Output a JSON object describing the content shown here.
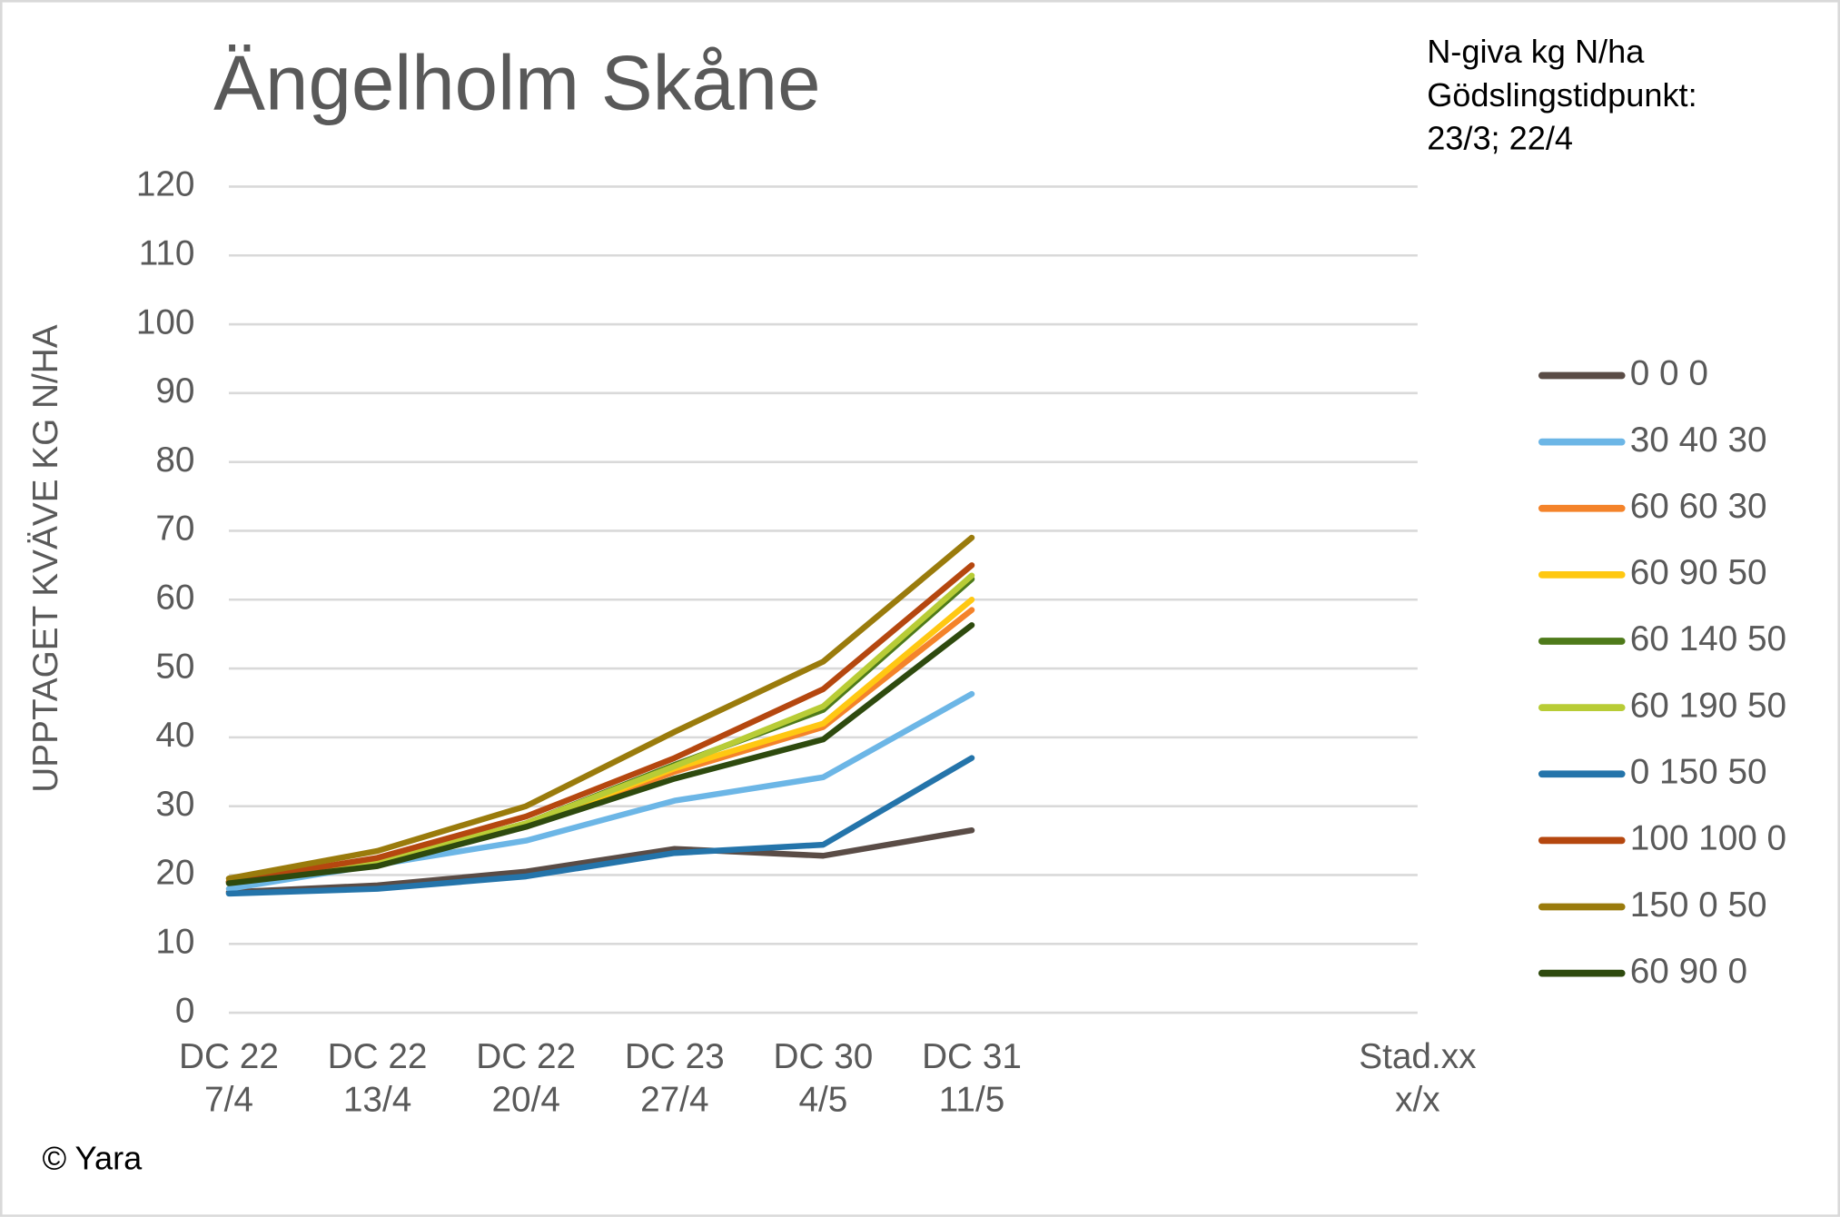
{
  "chart_data": {
    "type": "line",
    "title": "Ängelholm Skåne",
    "annotation": [
      "N-giva kg N/ha",
      "Gödslingstidpunkt:",
      "23/3; 22/4"
    ],
    "y_label": "UPPTAGET KVÄVE KG N/HA",
    "footer": "© Yara",
    "categories": [
      "DC 22\n7/4",
      "DC 22\n13/4",
      "DC 22\n20/4",
      "DC 23\n27/4",
      "DC 30\n4/5",
      "DC 31\n11/5",
      null,
      null,
      "Stad.xx\nx/x"
    ],
    "ylim": [
      0,
      120
    ],
    "yticks": [
      0,
      10,
      20,
      30,
      40,
      50,
      60,
      70,
      80,
      90,
      100,
      110,
      120
    ],
    "grid": true,
    "legend": "right",
    "series": [
      {
        "name": "0 0 0",
        "color": "#5a4c46",
        "values": [
          17.5,
          18.5,
          20.5,
          23.8,
          22.8,
          26.5,
          null,
          null,
          null
        ]
      },
      {
        "name": "30 40 30",
        "color": "#6cb6e6",
        "values": [
          18,
          21.5,
          25,
          30.8,
          34.2,
          46.3,
          null,
          null,
          null
        ]
      },
      {
        "name": "60 60 30",
        "color": "#f4832a",
        "values": [
          19,
          22,
          27,
          35,
          41.5,
          58.5,
          null,
          null,
          null
        ]
      },
      {
        "name": "60 90 50",
        "color": "#ffc812",
        "values": [
          19,
          22,
          27.2,
          35.5,
          42,
          60,
          null,
          null,
          null
        ]
      },
      {
        "name": "60 140 50",
        "color": "#4e7a1a",
        "values": [
          19,
          22,
          27.5,
          36,
          44,
          63,
          null,
          null,
          null
        ]
      },
      {
        "name": "60 190 50",
        "color": "#b8cc36",
        "values": [
          19,
          22,
          27.5,
          35.8,
          44.5,
          63.5,
          null,
          null,
          null
        ]
      },
      {
        "name": "0 150 50",
        "color": "#2474aa",
        "values": [
          17.3,
          18,
          19.8,
          23.2,
          24.4,
          37,
          null,
          null,
          null
        ]
      },
      {
        "name": "100 100 0",
        "color": "#b5470f",
        "values": [
          19,
          22.5,
          28.5,
          37,
          47,
          65,
          null,
          null,
          null
        ]
      },
      {
        "name": "150 0 50",
        "color": "#9a7b0c",
        "values": [
          19.5,
          23.5,
          30,
          40.8,
          51,
          69,
          null,
          null,
          null
        ]
      },
      {
        "name": "60 90 0",
        "color": "#2e4a0e",
        "values": [
          18.8,
          21.3,
          27,
          34,
          39.7,
          56.3,
          null,
          null,
          null
        ]
      }
    ]
  }
}
